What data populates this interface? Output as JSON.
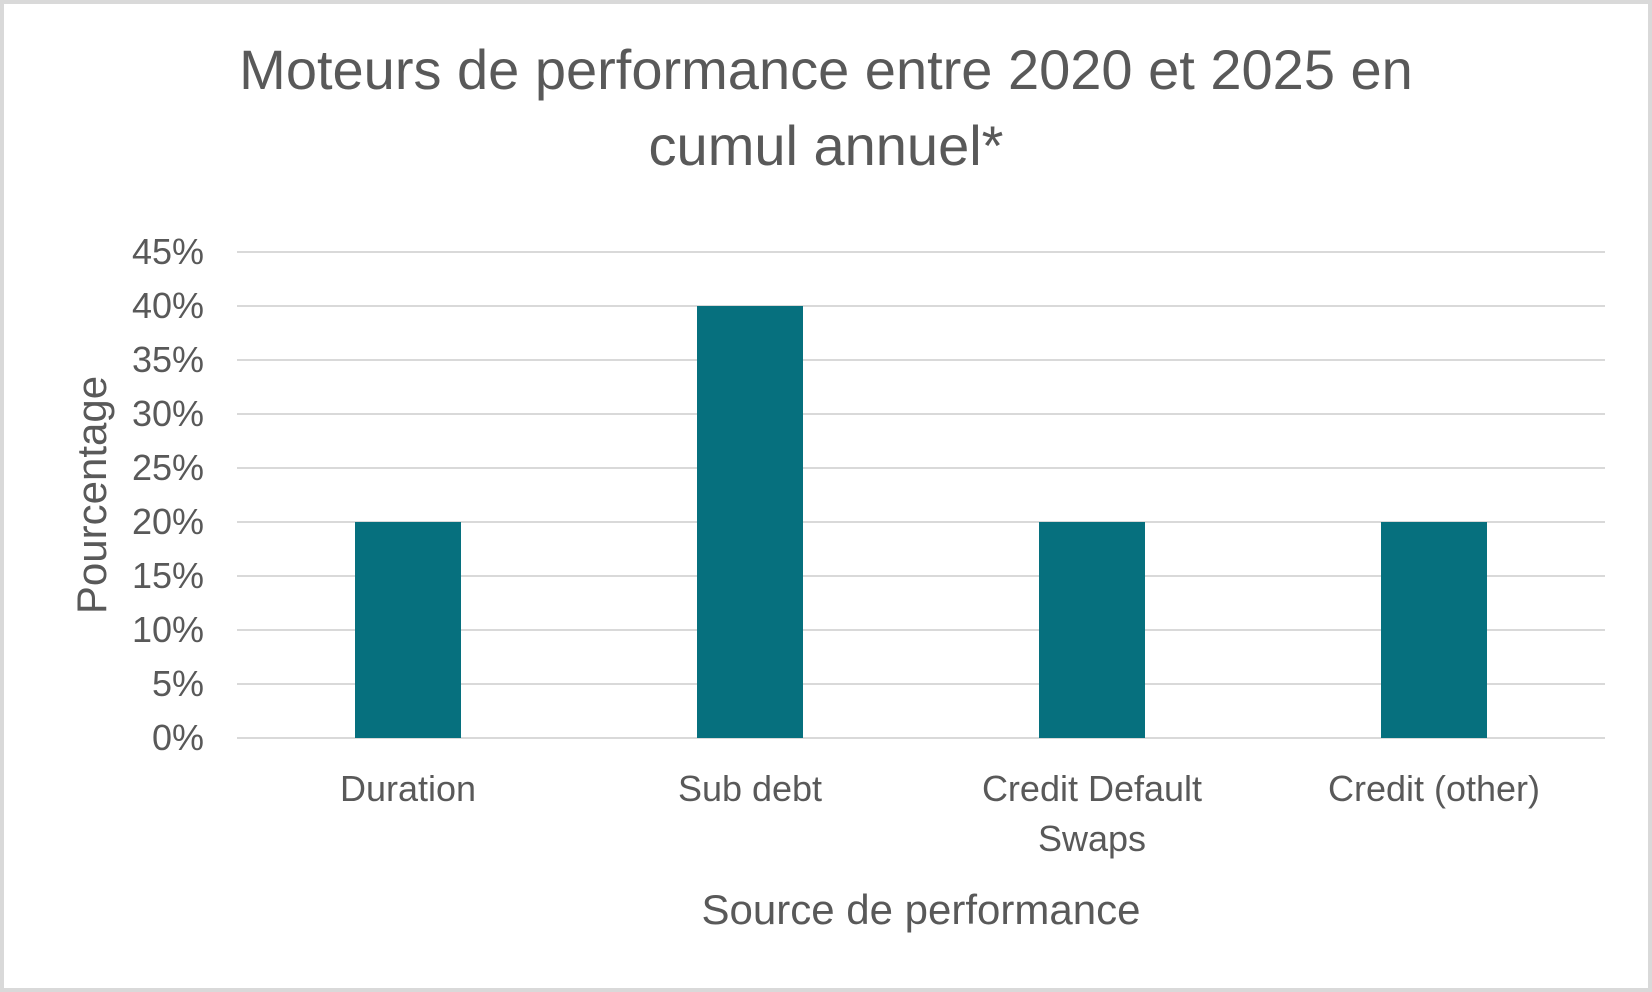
{
  "frame": {
    "background_color": "#ffffff",
    "border_color": "#d9d9d9"
  },
  "chart_data": {
    "type": "bar",
    "title": "Moteurs de performance entre 2020 et 2025 en cumul annuel*",
    "title_lines": [
      "Moteurs de performance entre 2020 et 2025 en",
      "cumul annuel*"
    ],
    "categories": [
      "Duration",
      "Sub debt",
      "Credit Default Swaps",
      "Credit (other)"
    ],
    "values": [
      20,
      40,
      20,
      20
    ],
    "value_unit": "%",
    "xlabel": "Source de performance",
    "ylabel": "Pourcentage",
    "ylim": [
      0,
      45
    ],
    "ytick_step": 5,
    "ytick_labels": [
      "0%",
      "5%",
      "10%",
      "15%",
      "20%",
      "25%",
      "30%",
      "35%",
      "40%",
      "45%"
    ],
    "grid": true,
    "legend_position": "none",
    "bar_color": "#06707e",
    "gridline_color": "#d9d9d9",
    "text_color": "#595959"
  }
}
